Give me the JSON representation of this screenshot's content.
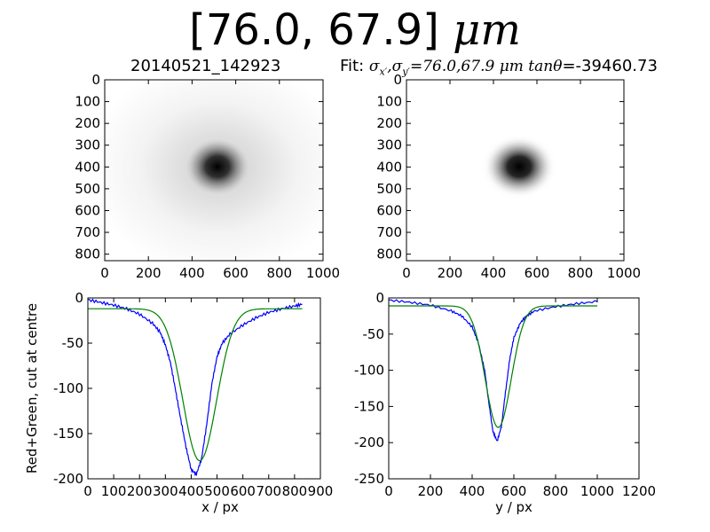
{
  "figure": {
    "title_value": "[76.0, 67.9]",
    "title_unit": "μm"
  },
  "chart_data": [
    {
      "type": "heatmap",
      "title": "20140521_142923",
      "description_colormap": "grayscale",
      "x_ticks": [
        0,
        200,
        400,
        600,
        800,
        1000
      ],
      "y_ticks": [
        0,
        100,
        200,
        300,
        400,
        500,
        600,
        700,
        800
      ],
      "xlim": [
        0,
        1000
      ],
      "ylim": [
        830,
        0
      ],
      "peak": {
        "x": 520,
        "y": 400
      }
    },
    {
      "type": "heatmap",
      "title": "Fit: σx′,σy′=76.0,67.9 μm tanθ=-39460.73",
      "title_prefix": "Fit: ",
      "title_values": "=76.0,67.9",
      "title_unit": " μm ",
      "title_tan_value": "=-39460.73",
      "description_colormap": "grayscale",
      "x_ticks": [
        0,
        200,
        400,
        600,
        800,
        1000
      ],
      "y_ticks": [
        0,
        100,
        200,
        300,
        400,
        500,
        600,
        700,
        800
      ],
      "xlim": [
        0,
        1000
      ],
      "ylim": [
        830,
        0
      ],
      "peak": {
        "x": 520,
        "y": 400
      }
    },
    {
      "type": "line",
      "xlabel": "x / px",
      "ylabel": "Red+Green, cut at centre",
      "xlim": [
        0,
        900
      ],
      "ylim": [
        -200,
        0
      ],
      "x_ticks": [
        0,
        100,
        200,
        300,
        400,
        500,
        600,
        700,
        800,
        900
      ],
      "x_tick_labels": [
        "0",
        "100",
        "200",
        "300",
        "400",
        "500",
        "600",
        "700",
        "800",
        "900"
      ],
      "y_ticks": [
        0,
        -50,
        -100,
        -150,
        -200
      ],
      "series": [
        {
          "color": "#0000ff",
          "kind": "data",
          "x": [
            0,
            50,
            100,
            150,
            200,
            250,
            280,
            300,
            320,
            340,
            360,
            380,
            400,
            420,
            440,
            460,
            480,
            500,
            520,
            550,
            600,
            650,
            700,
            750,
            800,
            830
          ],
          "y": [
            -2,
            -5,
            -8,
            -12,
            -18,
            -28,
            -38,
            -52,
            -72,
            -103,
            -135,
            -165,
            -190,
            -195,
            -178,
            -140,
            -95,
            -65,
            -50,
            -40,
            -30,
            -22,
            -16,
            -12,
            -9,
            -7
          ]
        },
        {
          "color": "#008000",
          "kind": "fit",
          "center": 433,
          "sigma": 65,
          "amplitude": -168,
          "baseline": -12,
          "xrange": [
            0,
            830
          ]
        }
      ]
    },
    {
      "type": "line",
      "xlabel": "y / px",
      "ylabel": "",
      "xlim": [
        0,
        1200
      ],
      "ylim": [
        -250,
        0
      ],
      "x_ticks": [
        0,
        200,
        400,
        600,
        800,
        1000,
        1200
      ],
      "y_ticks": [
        0,
        -50,
        -100,
        -150,
        -200,
        -250
      ],
      "series": [
        {
          "color": "#0000ff",
          "kind": "data",
          "x": [
            0,
            100,
            200,
            300,
            350,
            400,
            430,
            460,
            480,
            500,
            520,
            540,
            560,
            580,
            600,
            630,
            660,
            700,
            800,
            900,
            1000
          ],
          "y": [
            -3,
            -6,
            -10,
            -18,
            -25,
            -40,
            -62,
            -100,
            -145,
            -185,
            -198,
            -178,
            -130,
            -85,
            -55,
            -35,
            -25,
            -18,
            -12,
            -8,
            -5
          ]
        },
        {
          "color": "#008000",
          "kind": "fit",
          "center": 525,
          "sigma": 62,
          "amplitude": -168,
          "baseline": -11,
          "xrange": [
            0,
            1000
          ]
        }
      ]
    }
  ]
}
